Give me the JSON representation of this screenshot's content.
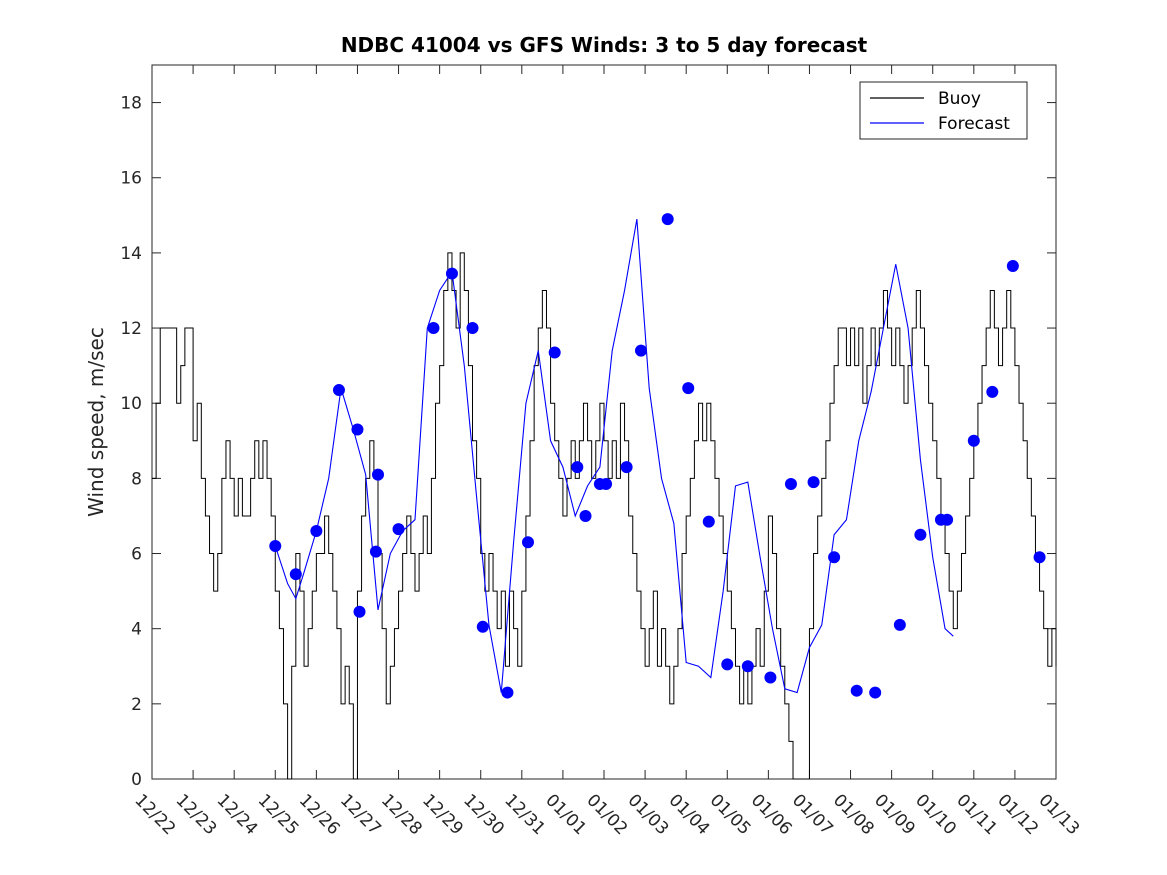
{
  "chart_data": {
    "type": "line",
    "title": "NDBC 41004 vs GFS Winds: 3 to 5 day forecast",
    "xlabel": "",
    "ylabel": "Wind speed, m/sec",
    "ylim": [
      0,
      19
    ],
    "xlim": [
      0,
      22
    ],
    "x_tick_labels": [
      "12/22",
      "12/23",
      "12/24",
      "12/25",
      "12/26",
      "12/27",
      "12/28",
      "12/29",
      "12/30",
      "12/31",
      "01/01",
      "01/02",
      "01/03",
      "01/04",
      "01/05",
      "01/06",
      "01/07",
      "01/08",
      "01/09",
      "01/10",
      "01/11",
      "01/12",
      "01/13"
    ],
    "y_ticks": [
      0,
      2,
      4,
      6,
      8,
      10,
      12,
      14,
      16,
      18
    ],
    "legend": {
      "position": "top-right",
      "entries": [
        {
          "name": "Buoy",
          "color": "#000000"
        },
        {
          "name": "Forecast",
          "color": "#0000ff"
        }
      ]
    },
    "series": [
      {
        "name": "Buoy",
        "color": "#000000",
        "style": "step",
        "points": [
          [
            0.0,
            8
          ],
          [
            0.1,
            10
          ],
          [
            0.2,
            12
          ],
          [
            0.5,
            12
          ],
          [
            0.6,
            10
          ],
          [
            0.7,
            11
          ],
          [
            0.8,
            12
          ],
          [
            0.9,
            12
          ],
          [
            1.0,
            9
          ],
          [
            1.1,
            10
          ],
          [
            1.2,
            8
          ],
          [
            1.3,
            7
          ],
          [
            1.4,
            6
          ],
          [
            1.5,
            5
          ],
          [
            1.6,
            6
          ],
          [
            1.7,
            8
          ],
          [
            1.8,
            9
          ],
          [
            1.9,
            8
          ],
          [
            2.0,
            7
          ],
          [
            2.1,
            8
          ],
          [
            2.2,
            7
          ],
          [
            2.4,
            8
          ],
          [
            2.5,
            9
          ],
          [
            2.6,
            8
          ],
          [
            2.7,
            9
          ],
          [
            2.8,
            8
          ],
          [
            2.9,
            7
          ],
          [
            3.0,
            5
          ],
          [
            3.1,
            4
          ],
          [
            3.2,
            2
          ],
          [
            3.3,
            0
          ],
          [
            3.4,
            3
          ],
          [
            3.5,
            6
          ],
          [
            3.6,
            5
          ],
          [
            3.7,
            3
          ],
          [
            3.8,
            4
          ],
          [
            3.9,
            5
          ],
          [
            4.0,
            6
          ],
          [
            4.1,
            6
          ],
          [
            4.2,
            7
          ],
          [
            4.3,
            6
          ],
          [
            4.4,
            5
          ],
          [
            4.5,
            4
          ],
          [
            4.6,
            2
          ],
          [
            4.7,
            3
          ],
          [
            4.8,
            2
          ],
          [
            4.9,
            0
          ],
          [
            5.0,
            5
          ],
          [
            5.1,
            7
          ],
          [
            5.2,
            8
          ],
          [
            5.3,
            9
          ],
          [
            5.4,
            8
          ],
          [
            5.5,
            6
          ],
          [
            5.6,
            4
          ],
          [
            5.7,
            2
          ],
          [
            5.8,
            3
          ],
          [
            5.9,
            4
          ],
          [
            6.0,
            5
          ],
          [
            6.1,
            6
          ],
          [
            6.2,
            7
          ],
          [
            6.3,
            6
          ],
          [
            6.4,
            5
          ],
          [
            6.5,
            6
          ],
          [
            6.6,
            7
          ],
          [
            6.7,
            6
          ],
          [
            6.8,
            8
          ],
          [
            6.9,
            10
          ],
          [
            7.0,
            11
          ],
          [
            7.1,
            13
          ],
          [
            7.2,
            14
          ],
          [
            7.3,
            13
          ],
          [
            7.4,
            12
          ],
          [
            7.5,
            14
          ],
          [
            7.6,
            13
          ],
          [
            7.7,
            11
          ],
          [
            7.8,
            9
          ],
          [
            7.9,
            8
          ],
          [
            8.0,
            6
          ],
          [
            8.1,
            5
          ],
          [
            8.2,
            6
          ],
          [
            8.3,
            5
          ],
          [
            8.4,
            4
          ],
          [
            8.5,
            5
          ],
          [
            8.6,
            3
          ],
          [
            8.7,
            5
          ],
          [
            8.8,
            4
          ],
          [
            8.9,
            3
          ],
          [
            9.0,
            5
          ],
          [
            9.1,
            7
          ],
          [
            9.2,
            9
          ],
          [
            9.3,
            11
          ],
          [
            9.4,
            12
          ],
          [
            9.5,
            13
          ],
          [
            9.6,
            12
          ],
          [
            9.7,
            10
          ],
          [
            9.8,
            9
          ],
          [
            9.9,
            8
          ],
          [
            10.0,
            7
          ],
          [
            10.1,
            8
          ],
          [
            10.2,
            9
          ],
          [
            10.3,
            8
          ],
          [
            10.4,
            9
          ],
          [
            10.5,
            10
          ],
          [
            10.6,
            9
          ],
          [
            10.7,
            8
          ],
          [
            10.8,
            9
          ],
          [
            10.9,
            10
          ],
          [
            11.0,
            9
          ],
          [
            11.1,
            8
          ],
          [
            11.2,
            9
          ],
          [
            11.3,
            8
          ],
          [
            11.4,
            10
          ],
          [
            11.5,
            9
          ],
          [
            11.6,
            7
          ],
          [
            11.7,
            6
          ],
          [
            11.8,
            5
          ],
          [
            11.9,
            4
          ],
          [
            12.0,
            3
          ],
          [
            12.1,
            4
          ],
          [
            12.2,
            5
          ],
          [
            12.3,
            3
          ],
          [
            12.4,
            4
          ],
          [
            12.5,
            3
          ],
          [
            12.6,
            2
          ],
          [
            12.7,
            3
          ],
          [
            12.8,
            4
          ],
          [
            12.9,
            6
          ],
          [
            13.0,
            7
          ],
          [
            13.1,
            8
          ],
          [
            13.2,
            9
          ],
          [
            13.3,
            10
          ],
          [
            13.4,
            9
          ],
          [
            13.5,
            10
          ],
          [
            13.6,
            9
          ],
          [
            13.7,
            8
          ],
          [
            13.8,
            7
          ],
          [
            13.9,
            6
          ],
          [
            14.0,
            5
          ],
          [
            14.1,
            4
          ],
          [
            14.2,
            3
          ],
          [
            14.3,
            2
          ],
          [
            14.4,
            3
          ],
          [
            14.5,
            2
          ],
          [
            14.6,
            3
          ],
          [
            14.7,
            4
          ],
          [
            14.8,
            3
          ],
          [
            14.9,
            5
          ],
          [
            15.0,
            7
          ],
          [
            15.1,
            6
          ],
          [
            15.2,
            4
          ],
          [
            15.3,
            3
          ],
          [
            15.4,
            2
          ],
          [
            15.5,
            1
          ],
          [
            15.6,
            0
          ],
          [
            15.7,
            0
          ],
          [
            15.8,
            0
          ],
          [
            15.9,
            0
          ],
          [
            16.0,
            4
          ],
          [
            16.1,
            6
          ],
          [
            16.2,
            7
          ],
          [
            16.3,
            8
          ],
          [
            16.4,
            9
          ],
          [
            16.5,
            10
          ],
          [
            16.6,
            11
          ],
          [
            16.7,
            12
          ],
          [
            16.8,
            12
          ],
          [
            16.9,
            11
          ],
          [
            17.0,
            12
          ],
          [
            17.1,
            11
          ],
          [
            17.2,
            12
          ],
          [
            17.3,
            10
          ],
          [
            17.4,
            11
          ],
          [
            17.5,
            12
          ],
          [
            17.6,
            11
          ],
          [
            17.7,
            12
          ],
          [
            17.8,
            13
          ],
          [
            17.9,
            12
          ],
          [
            18.0,
            11
          ],
          [
            18.1,
            12
          ],
          [
            18.2,
            11
          ],
          [
            18.3,
            10
          ],
          [
            18.4,
            11
          ],
          [
            18.5,
            12
          ],
          [
            18.6,
            13
          ],
          [
            18.7,
            12
          ],
          [
            18.8,
            11
          ],
          [
            18.9,
            10
          ],
          [
            19.0,
            9
          ],
          [
            19.1,
            8
          ],
          [
            19.2,
            7
          ],
          [
            19.3,
            6
          ],
          [
            19.4,
            5
          ],
          [
            19.5,
            4
          ],
          [
            19.6,
            5
          ],
          [
            19.7,
            6
          ],
          [
            19.8,
            7
          ],
          [
            19.9,
            8
          ],
          [
            20.0,
            9
          ],
          [
            20.1,
            10
          ],
          [
            20.2,
            11
          ],
          [
            20.3,
            12
          ],
          [
            20.4,
            13
          ],
          [
            20.5,
            12
          ],
          [
            20.6,
            11
          ],
          [
            20.7,
            12
          ],
          [
            20.8,
            13
          ],
          [
            20.9,
            12
          ],
          [
            21.0,
            11
          ],
          [
            21.1,
            10
          ],
          [
            21.2,
            9
          ],
          [
            21.3,
            8
          ],
          [
            21.4,
            7
          ],
          [
            21.5,
            6
          ],
          [
            21.6,
            5
          ],
          [
            21.7,
            4
          ],
          [
            21.8,
            3
          ],
          [
            21.9,
            4
          ],
          [
            22.0,
            3
          ]
        ]
      },
      {
        "name": "Forecast",
        "color": "#0000ff",
        "style": "line",
        "points": [
          [
            3.0,
            6.2
          ],
          [
            3.3,
            5.2
          ],
          [
            3.5,
            4.8
          ],
          [
            3.7,
            5.5
          ],
          [
            4.0,
            6.6
          ],
          [
            4.3,
            8.0
          ],
          [
            4.6,
            10.4
          ],
          [
            4.9,
            9.3
          ],
          [
            5.2,
            8.1
          ],
          [
            5.5,
            4.5
          ],
          [
            5.8,
            6.0
          ],
          [
            6.1,
            6.6
          ],
          [
            6.4,
            6.9
          ],
          [
            6.7,
            12.0
          ],
          [
            7.0,
            13.0
          ],
          [
            7.3,
            13.5
          ],
          [
            7.6,
            11.0
          ],
          [
            7.9,
            7.5
          ],
          [
            8.2,
            4.1
          ],
          [
            8.5,
            2.3
          ],
          [
            8.8,
            6.3
          ],
          [
            9.1,
            10.0
          ],
          [
            9.4,
            11.4
          ],
          [
            9.7,
            9.0
          ],
          [
            10.0,
            8.3
          ],
          [
            10.3,
            7.0
          ],
          [
            10.6,
            7.8
          ],
          [
            10.9,
            8.3
          ],
          [
            11.2,
            11.4
          ],
          [
            11.5,
            13.0
          ],
          [
            11.8,
            14.9
          ],
          [
            12.1,
            10.4
          ],
          [
            12.4,
            8.0
          ],
          [
            12.7,
            6.8
          ],
          [
            13.0,
            3.1
          ],
          [
            13.3,
            3.0
          ],
          [
            13.6,
            2.7
          ],
          [
            13.9,
            5.0
          ],
          [
            14.2,
            7.8
          ],
          [
            14.5,
            7.9
          ],
          [
            14.8,
            5.9
          ],
          [
            15.1,
            4.0
          ],
          [
            15.4,
            2.4
          ],
          [
            15.7,
            2.3
          ],
          [
            16.0,
            3.5
          ],
          [
            16.3,
            4.1
          ],
          [
            16.6,
            6.5
          ],
          [
            16.9,
            6.9
          ],
          [
            17.2,
            9.0
          ],
          [
            17.5,
            10.3
          ],
          [
            17.8,
            12.0
          ],
          [
            18.1,
            13.7
          ],
          [
            18.4,
            12.0
          ],
          [
            18.7,
            8.5
          ],
          [
            19.0,
            5.9
          ],
          [
            19.3,
            4.0
          ],
          [
            19.5,
            3.8
          ]
        ]
      }
    ],
    "forecast_markers": [
      [
        3.0,
        6.2
      ],
      [
        3.5,
        5.45
      ],
      [
        4.0,
        6.6
      ],
      [
        4.55,
        10.35
      ],
      [
        5.0,
        9.3
      ],
      [
        5.5,
        8.1
      ],
      [
        5.05,
        4.45
      ],
      [
        5.45,
        6.05
      ],
      [
        6.0,
        6.65
      ],
      [
        6.85,
        12.0
      ],
      [
        7.3,
        13.45
      ],
      [
        8.05,
        4.05
      ],
      [
        8.65,
        2.3
      ],
      [
        9.15,
        6.3
      ],
      [
        9.8,
        11.35
      ],
      [
        10.35,
        8.3
      ],
      [
        10.55,
        7.0
      ],
      [
        11.05,
        7.85
      ],
      [
        11.55,
        8.3
      ],
      [
        11.9,
        11.4
      ],
      [
        12.55,
        14.9
      ],
      [
        13.05,
        10.4
      ],
      [
        13.55,
        6.85
      ],
      [
        14.0,
        3.05
      ],
      [
        14.5,
        3.0
      ],
      [
        15.05,
        2.7
      ],
      [
        15.55,
        7.85
      ],
      [
        16.1,
        7.9
      ],
      [
        16.6,
        5.9
      ],
      [
        17.15,
        2.35
      ],
      [
        17.6,
        2.3
      ],
      [
        18.2,
        4.1
      ],
      [
        18.7,
        6.5
      ],
      [
        19.2,
        6.9
      ],
      [
        19.35,
        6.9
      ],
      [
        20.0,
        9.0
      ],
      [
        20.45,
        10.3
      ],
      [
        20.95,
        13.65
      ],
      [
        21.6,
        5.9
      ],
      [
        7.8,
        12.0
      ],
      [
        10.9,
        7.85
      ]
    ]
  }
}
